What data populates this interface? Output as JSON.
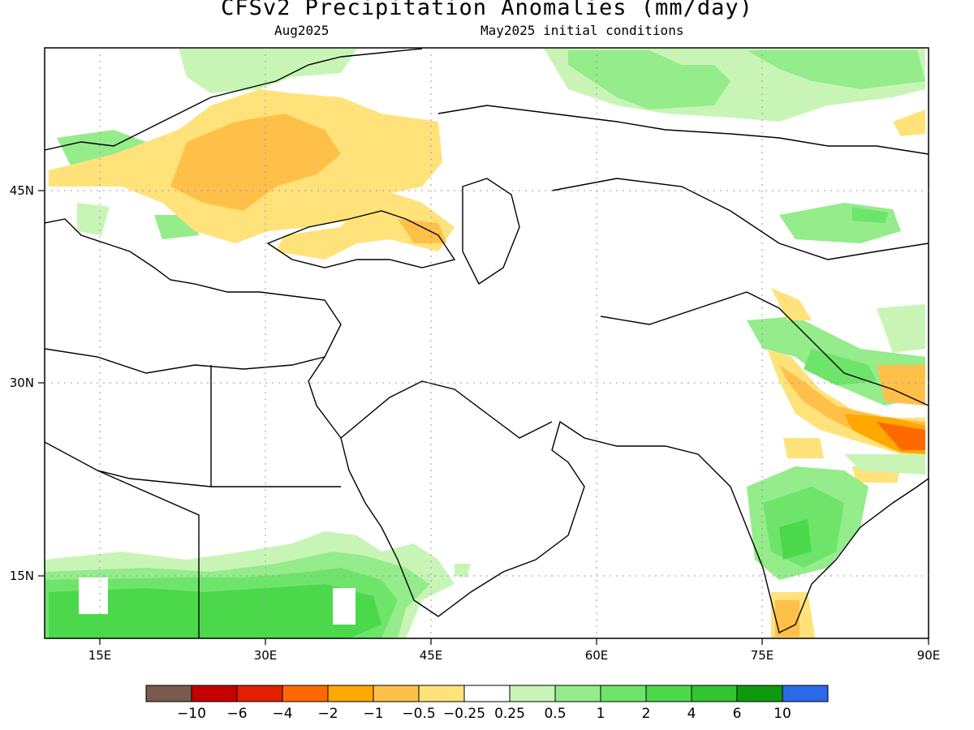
{
  "title": "CFSv2 Precipitation Anomalies (mm/day)",
  "valid_month": "Aug2025",
  "init_conditions": "May2025 initial conditions",
  "axes": {
    "x_ticks": [
      "15E",
      "30E",
      "45E",
      "60E",
      "75E",
      "90E"
    ],
    "y_ticks": [
      "45N",
      "30N",
      "15N"
    ]
  },
  "colorbar": {
    "colors": [
      "#7a5a4c",
      "#c40000",
      "#e02000",
      "#ff6a00",
      "#ffa800",
      "#ffc04a",
      "#ffe27a",
      "#ffffff",
      "#c8f5b6",
      "#94ec8a",
      "#6fe46b",
      "#4bd94b",
      "#32c432",
      "#0e9a0e",
      "#2a6ae8"
    ],
    "labels": [
      "−10",
      "−6",
      "−4",
      "−2",
      "−1",
      "−0.5",
      "−0.25",
      "0.25",
      "0.5",
      "1",
      "2",
      "4",
      "6",
      "10"
    ]
  }
}
